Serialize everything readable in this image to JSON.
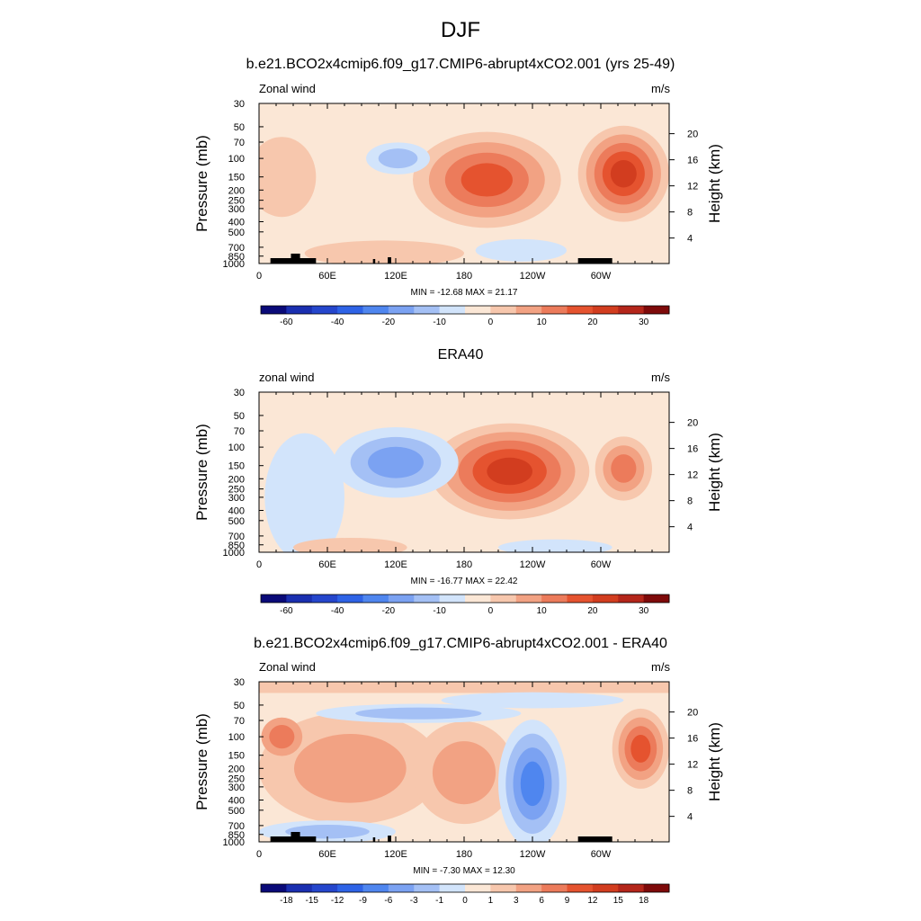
{
  "title": "DJF",
  "panels": [
    {
      "title": "b.e21.BCO2x4cmip6.f09_g17.CMIP6-abrupt4xCO2.001 (yrs 25-49)",
      "var_label": "Zonal wind",
      "units": "m/s",
      "min_max": "MIN = -12.68  MAX =  21.17",
      "colorbar_levels": [
        "-60",
        "-40",
        "-20",
        "-10",
        "0",
        "10",
        "20",
        "30"
      ],
      "topography": true
    },
    {
      "title": "ERA40",
      "var_label": "zonal wind",
      "units": "m/s",
      "min_max": "MIN = -16.77  MAX =  22.42",
      "colorbar_levels": [
        "-60",
        "-40",
        "-20",
        "-10",
        "0",
        "10",
        "20",
        "30"
      ],
      "topography": false
    },
    {
      "title": "b.e21.BCO2x4cmip6.f09_g17.CMIP6-abrupt4xCO2.001 - ERA40",
      "var_label": "Zonal wind",
      "units": "m/s",
      "min_max": "MIN = -7.30  MAX =  12.30",
      "colorbar_levels": [
        "-18",
        "-15",
        "-12",
        "-9",
        "-6",
        "-3",
        "-1",
        "0",
        "1",
        "3",
        "6",
        "9",
        "12",
        "15",
        "18"
      ],
      "topography": true
    }
  ],
  "chart_data": {
    "type": "heatmap",
    "x_ticks": [
      "0",
      "60E",
      "120E",
      "180",
      "120W",
      "60W"
    ],
    "x_values": [
      0,
      60,
      120,
      180,
      240,
      300
    ],
    "xlim": [
      0,
      360
    ],
    "y_label_left": "Pressure (mb)",
    "y_ticks_left": [
      "30",
      "50",
      "70",
      "100",
      "150",
      "200",
      "250",
      "300",
      "400",
      "500",
      "700",
      "850",
      "1000"
    ],
    "y_values_left": [
      30,
      50,
      70,
      100,
      150,
      200,
      250,
      300,
      400,
      500,
      700,
      850,
      1000
    ],
    "y_scale": "log",
    "ylim": [
      1000,
      30
    ],
    "y_label_right": "Height (km)",
    "y_ticks_right": [
      "4",
      "8",
      "12",
      "16",
      "20"
    ],
    "y_values_right": [
      4,
      8,
      12,
      16,
      20
    ],
    "colorbar_colors": [
      "#0a0a78",
      "#1a2fb0",
      "#2546cc",
      "#2e63e6",
      "#4f86ef",
      "#7ba2f2",
      "#a4c0f5",
      "#d2e4fb",
      "#fbe7d6",
      "#f7c7ad",
      "#f2a283",
      "#ec7b5b",
      "#e5532f",
      "#d23d1f",
      "#b4261a",
      "#7e0a0a"
    ]
  }
}
